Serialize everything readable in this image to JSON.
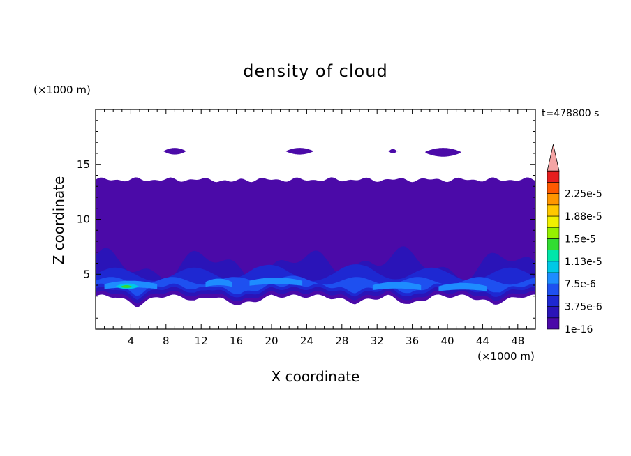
{
  "chart_data": {
    "type": "heatmap",
    "title": "density of cloud",
    "xlabel": "X coordinate",
    "ylabel": "Z coordinate",
    "x_unit": "(×1000 m)",
    "z_unit": "(×1000 m)",
    "time_label": "t=478800 s",
    "xlim": [
      0,
      50
    ],
    "ylim": [
      0,
      20
    ],
    "x_ticks": [
      4,
      8,
      12,
      16,
      20,
      24,
      28,
      32,
      36,
      40,
      44,
      48
    ],
    "y_ticks": [
      5,
      10,
      15
    ],
    "colorbar": {
      "labels": [
        "1e-16",
        "3.75e-6",
        "7.5e-6",
        "1.13e-5",
        "1.5e-5",
        "1.88e-5",
        "2.25e-5"
      ],
      "levels": [
        1e-16,
        1.875e-06,
        3.75e-06,
        5.625e-06,
        7.5e-06,
        9.375e-06,
        1.125e-05,
        1.3125e-05,
        1.5e-05,
        1.6875e-05,
        1.875e-05,
        2.0625e-05,
        2.25e-05,
        2.4375e-05
      ],
      "colors": [
        "#4b0aa8",
        "#2a14b8",
        "#1e28d2",
        "#1e50f0",
        "#1e8cff",
        "#00c8e6",
        "#00e6aa",
        "#32dc32",
        "#96f000",
        "#f0f000",
        "#ffc800",
        "#ff9600",
        "#ff5a00",
        "#e61e1e"
      ],
      "extend_color": "#f4a4a4",
      "extend": "max"
    },
    "contour_regions": [
      {
        "level": 1,
        "description": "main cloud layer",
        "x_range": [
          0,
          50
        ],
        "z_range": [
          2.2,
          13.8
        ]
      },
      {
        "level": 1,
        "x_range": [
          7.7,
          10.3
        ],
        "z_range": [
          15.8,
          16.6
        ]
      },
      {
        "level": 1,
        "x_range": [
          21.6,
          25
        ],
        "z_range": [
          15.8,
          16.6
        ]
      },
      {
        "level": 1,
        "x_range": [
          37.5,
          41.5
        ],
        "z_range": [
          15.6,
          16.6
        ]
      },
      {
        "level": 2,
        "x_range": [
          0,
          50
        ],
        "z_range": [
          2.6,
          7.5
        ]
      },
      {
        "level": 3,
        "x_range": [
          0,
          50
        ],
        "z_range": [
          3,
          6
        ]
      },
      {
        "level": 4,
        "x_range": [
          0,
          50
        ],
        "z_range": [
          3.2,
          5
        ]
      },
      {
        "level": 5,
        "x_range": [
          1,
          7
        ],
        "z_range": [
          3.5,
          4.6
        ]
      },
      {
        "level": 6,
        "x_range": [
          2.5,
          5
        ],
        "z_range": [
          3.6,
          4.2
        ]
      },
      {
        "level": 7,
        "x_range": [
          2.8,
          4.2
        ],
        "z_range": [
          3.7,
          4.0
        ]
      }
    ]
  }
}
